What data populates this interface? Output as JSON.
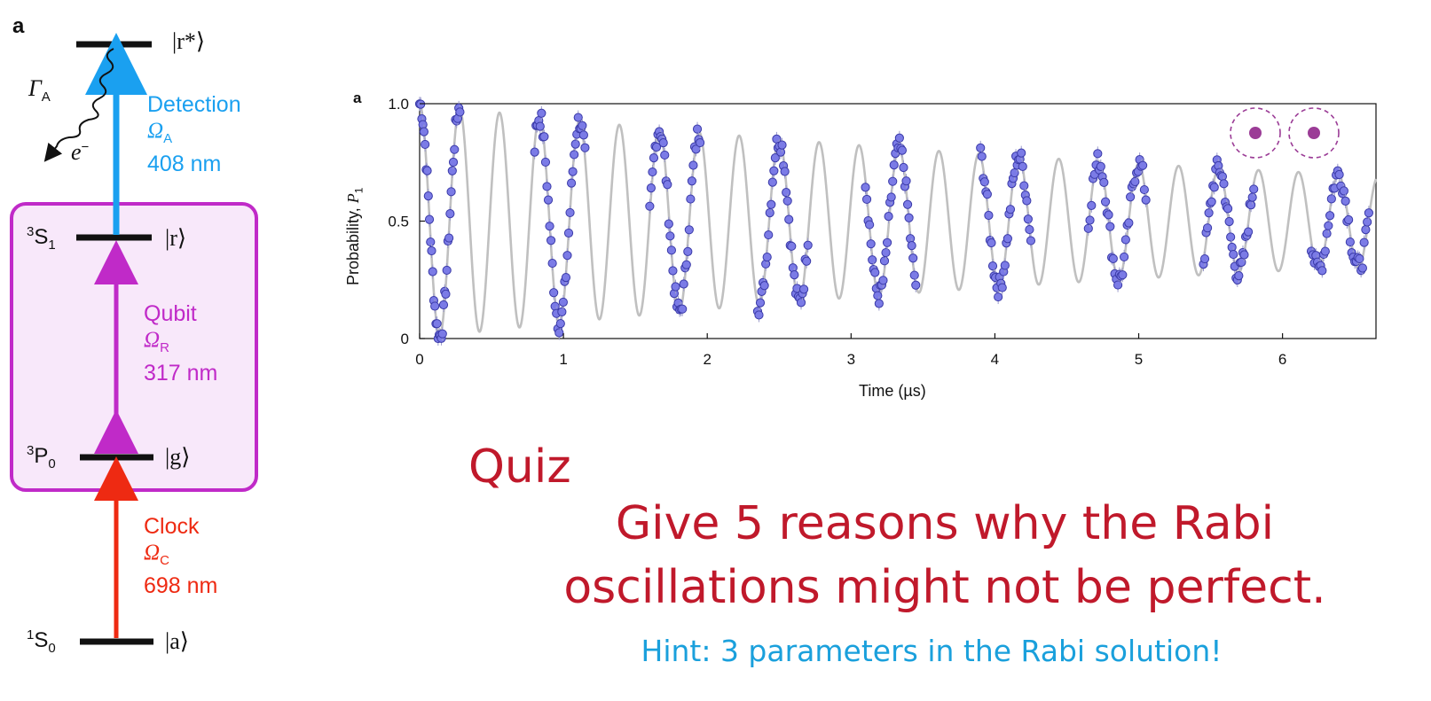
{
  "level_diagram": {
    "panel_letter": "a",
    "levels": [
      {
        "id": "rstar",
        "ket": "|r*⟩"
      },
      {
        "id": "r",
        "term": "3S1",
        "ket": "|r⟩"
      },
      {
        "id": "g",
        "term": "3P0",
        "ket": "|g⟩"
      },
      {
        "id": "a",
        "term": "1S0",
        "ket": "|a⟩"
      }
    ],
    "decay": {
      "rate_symbol": "Γ",
      "rate_subscript": "A",
      "product": "e",
      "product_sup": "−"
    },
    "transitions": [
      {
        "name": "Detection",
        "rabi_symbol": "Ω",
        "rabi_sub": "A",
        "wavelength": "408 nm",
        "color": "#1aa0f0"
      },
      {
        "name": "Qubit",
        "rabi_symbol": "Ω",
        "rabi_sub": "R",
        "wavelength": "317 nm",
        "color": "#c02ac8"
      },
      {
        "name": "Clock",
        "rabi_symbol": "Ω",
        "rabi_sub": "C",
        "wavelength": "698 nm",
        "color": "#ee2a12"
      }
    ],
    "qubit_box_color": "#c02ac8",
    "qubit_box_fill": "#f8e8fa"
  },
  "chart_data": {
    "type": "scatter",
    "panel_letter": "a",
    "xlabel": "Time (µs)",
    "ylabel_text": "Probability, ",
    "ylabel_symbol": "P",
    "ylabel_sub": "1",
    "xlim": [
      0,
      6.65
    ],
    "ylim": [
      0,
      1.0
    ],
    "xticks": [
      0,
      1,
      2,
      3,
      4,
      5,
      6
    ],
    "yticks": [
      0,
      0.5,
      1.0
    ],
    "ytick_labels": [
      "0",
      "0.5",
      "1.0"
    ],
    "fit_curve": {
      "color": "#c0c0c0",
      "rabi_frequency_per_us": 3.6,
      "decay_time_us": 7.0
    },
    "marker_color": "#7b7be6",
    "marker_edge": "#3a3aa8",
    "atom_icon_color": "#9b3c96",
    "segments": [
      {
        "x_start": 0.0,
        "x_end": 0.28
      },
      {
        "x_start": 0.8,
        "x_end": 1.15
      },
      {
        "x_start": 1.6,
        "x_end": 1.95
      },
      {
        "x_start": 2.35,
        "x_end": 2.7
      },
      {
        "x_start": 3.1,
        "x_end": 3.45
      },
      {
        "x_start": 3.9,
        "x_end": 4.25
      },
      {
        "x_start": 4.65,
        "x_end": 5.05
      },
      {
        "x_start": 5.45,
        "x_end": 5.8
      },
      {
        "x_start": 6.2,
        "x_end": 6.6
      }
    ]
  },
  "quiz": {
    "title": "Quiz",
    "line1": "Give 5 reasons why the Rabi",
    "line2": "oscillations might not be perfect.",
    "hint": "Hint: 3 parameters in the Rabi solution!"
  }
}
